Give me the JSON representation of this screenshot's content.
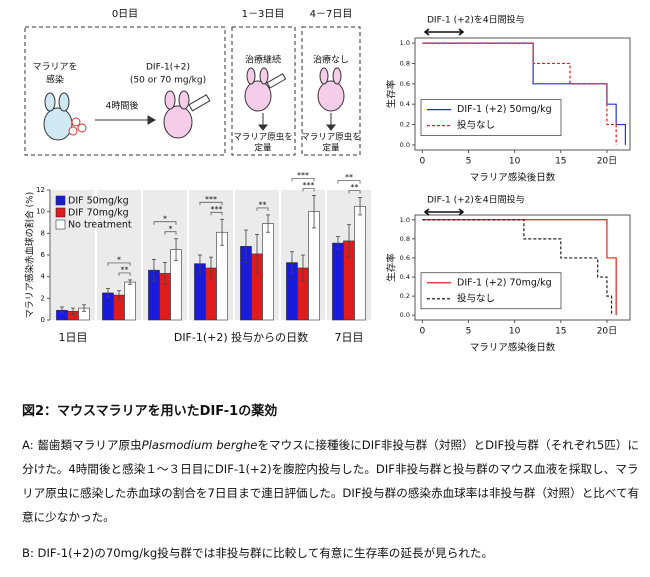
{
  "diagram": {
    "day0": "0日目",
    "day13": "1－3日目",
    "day47": "4－7日目",
    "infect": [
      "マラリアを",
      "感染"
    ],
    "hours": "4時間後",
    "drug": "DIF-1(+2)",
    "dose": "(50 or 70 mg/kg)",
    "continue": "治療継続",
    "none": "治療なし",
    "quant1": [
      "マラリア原虫を",
      "定量"
    ],
    "quant2": [
      "マラリア原虫を",
      "定量"
    ]
  },
  "chart_data": [
    {
      "type": "bar",
      "ylabel": "マラリア感染赤血球の割合 (%)",
      "xlabel": "DIF-1(+2) 投与からの日数",
      "categories": [
        "1日目",
        null,
        null,
        null,
        null,
        null,
        "7日目"
      ],
      "ylim": [
        0,
        12
      ],
      "yticks": [
        0,
        2,
        4,
        6,
        8,
        10,
        12
      ],
      "legend": "upper-left",
      "series": [
        {
          "name": "DIF 50mg/kg",
          "color": "#1a1adb",
          "values": [
            0.9,
            2.5,
            4.6,
            5.2,
            6.8,
            5.3,
            7.1
          ],
          "errors": [
            0.3,
            0.4,
            1.0,
            0.8,
            1.5,
            1.0,
            0.6
          ]
        },
        {
          "name": "DIF 70mg/kg",
          "color": "#e01b1b",
          "values": [
            0.8,
            2.3,
            4.3,
            4.8,
            6.1,
            4.8,
            7.3
          ],
          "errors": [
            0.3,
            0.4,
            1.0,
            1.0,
            1.8,
            1.2,
            1.5
          ]
        },
        {
          "name": "No treatment",
          "color": "#ffffff",
          "values": [
            1.1,
            3.5,
            6.5,
            8.1,
            8.9,
            10.0,
            10.5
          ],
          "errors": [
            0.3,
            0.2,
            1.0,
            1.2,
            0.8,
            1.5,
            0.8
          ]
        }
      ],
      "significance": [
        [],
        [
          "**",
          "*"
        ],
        [
          "*",
          "*"
        ],
        [
          "***",
          "***"
        ],
        [
          "**"
        ],
        [
          "***",
          "***"
        ],
        [
          "**",
          "**"
        ]
      ]
    },
    {
      "type": "step",
      "annotation": "DIF-1 (+2)を4日間投与",
      "ylabel": "生存率",
      "xlabel": "マラリア感染後日数",
      "xlim": [
        -0.8,
        22.5
      ],
      "ylim": [
        -0.05,
        1.05
      ],
      "xticks": [
        0,
        5,
        10,
        15,
        {
          "value": 20,
          "label": "20日"
        }
      ],
      "yticks": [
        {
          "value": 0,
          "label": "0.0"
        },
        0.2,
        0.4,
        0.6,
        0.8,
        {
          "value": 1,
          "label": "1.0"
        }
      ],
      "legend": "center-left",
      "series": [
        {
          "name": "DIF-1 (+2) 50mg/kg",
          "color": "#2233cc",
          "dashed": false,
          "x": [
            0,
            12,
            20,
            21,
            22
          ],
          "values": [
            1,
            0.6,
            0.4,
            0.2,
            0
          ]
        },
        {
          "name": "投与なし",
          "color": "#dd2222",
          "dashed": true,
          "x": [
            0,
            12,
            16,
            20,
            21
          ],
          "values": [
            1,
            0.8,
            0.6,
            0.2,
            0
          ]
        }
      ]
    },
    {
      "type": "step",
      "annotation": "DIF-1 (+2)を4日間投与",
      "ylabel": "生存率",
      "xlabel": "マラリア感染後日数",
      "xlim": [
        -0.8,
        22.5
      ],
      "ylim": [
        -0.05,
        1.05
      ],
      "xticks": [
        0,
        5,
        10,
        15,
        {
          "value": 20,
          "label": "20日"
        }
      ],
      "yticks": [
        {
          "value": 0,
          "label": "0.0"
        },
        0.2,
        0.4,
        0.6,
        0.8,
        {
          "value": 1,
          "label": "1.0"
        }
      ],
      "legend": "center-left",
      "series": [
        {
          "name": "DIF-1 (+2) 70mg/kg",
          "color": "#dd2222",
          "dashed": false,
          "x": [
            0,
            20,
            21
          ],
          "values": [
            1,
            0.6,
            0
          ]
        },
        {
          "name": "投与なし",
          "color": "#222222",
          "dashed": true,
          "x": [
            0,
            11,
            15,
            19,
            20,
            20.5
          ],
          "values": [
            1,
            0.8,
            0.6,
            0.4,
            0.2,
            0
          ]
        }
      ]
    }
  ],
  "caption": {
    "title": "図2：マウスマラリアを用いたDIF-1の薬効",
    "a": [
      "A: 齧歯類マラリア原虫",
      "Plasmodium berghe",
      "をマウスに接種後にDIF非投与群（対照）とDIF投与群（それぞれ5匹）に分けた。4時間後と感染１～３日目にDIF-1(+2)を腹腔内投与した。DIF非投与群と投与群のマウス血液を採取し、マラリア原虫に感染した赤血球の割合を7日目まで連日評価した。DIF投与群の感染赤血球率は非投与群（対照）と比べて有意に少なかった。"
    ],
    "b": "B: DIF-1(+2)の70mg/kg投与群では非投与群に比較して有意に生存率の延長が見られた。"
  }
}
